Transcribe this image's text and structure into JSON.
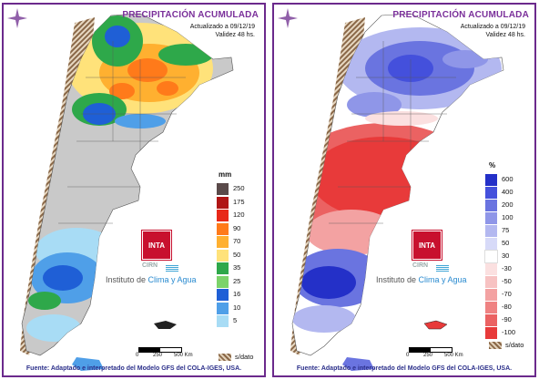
{
  "panels": [
    {
      "title": "PRECIPITACIÓN ACUMULADA",
      "updated_line1": "Actualizado a 09/12/19",
      "updated_line2": "Validez 48 hs.",
      "legend_unit": "mm",
      "legend": [
        {
          "label": "250",
          "color": "#5a4a4a"
        },
        {
          "label": "175",
          "color": "#b01515"
        },
        {
          "label": "120",
          "color": "#e82818"
        },
        {
          "label": "90",
          "color": "#ff7a1a"
        },
        {
          "label": "70",
          "color": "#ffb030"
        },
        {
          "label": "50",
          "color": "#ffe27a"
        },
        {
          "label": "35",
          "color": "#2ea84a"
        },
        {
          "label": "25",
          "color": "#7cd36a"
        },
        {
          "label": "16",
          "color": "#1f5fd6"
        },
        {
          "label": "10",
          "color": "#4f9fe8"
        },
        {
          "label": "5",
          "color": "#a8dcf5"
        }
      ],
      "nodata_label": "s/dato",
      "source": "Fuente: Adaptado e interpretado del Modelo GFS del COLA-IGES, USA."
    },
    {
      "title": "PRECIPITACIÓN ACUMULADA",
      "updated_line1": "Actualizado a 09/12/19",
      "updated_line2": "Validez 48 hs.",
      "legend_unit": "%",
      "legend": [
        {
          "label": "600",
          "color": "#2430c8"
        },
        {
          "label": "400",
          "color": "#4450dc"
        },
        {
          "label": "200",
          "color": "#6a74e0"
        },
        {
          "label": "100",
          "color": "#8f96e8"
        },
        {
          "label": "75",
          "color": "#b3b8f0"
        },
        {
          "label": "50",
          "color": "#d7daf8"
        },
        {
          "label": "30",
          "color": "#ffffff"
        },
        {
          "label": "-30",
          "color": "#fbe0e0"
        },
        {
          "label": "-50",
          "color": "#f7c2c2"
        },
        {
          "label": "-70",
          "color": "#f3a2a2"
        },
        {
          "label": "-80",
          "color": "#ef8282"
        },
        {
          "label": "-90",
          "color": "#eb6262"
        },
        {
          "label": "-100",
          "color": "#e83a3a"
        }
      ],
      "nodata_label": "s/dato",
      "source": "Fuente: Adaptado e interpretado del Modelo GFS del COLA-IGES, USA."
    }
  ],
  "logo": {
    "inta": "INTA",
    "cirn": "CIRN",
    "institute_prefix": "Instituto de ",
    "institute_accent": "Clima y Agua"
  },
  "scale": {
    "zero": "0",
    "mid": "250",
    "end": "500 Km"
  },
  "colors": {
    "frame": "#6b2a8c",
    "title": "#7a2f9a",
    "source": "#2b2f8a"
  }
}
